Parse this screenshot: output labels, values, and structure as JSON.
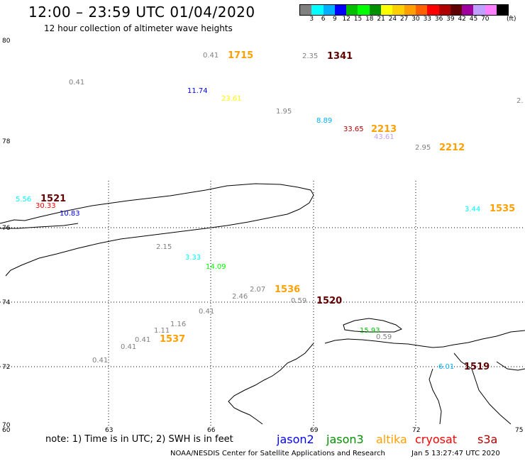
{
  "title": "12:00 – 23:59 UTC 01/04/2020",
  "subtitle": "12 hour collection of altimeter wave heights",
  "scale": {
    "colors": [
      "#808080",
      "#00ffff",
      "#00b0ff",
      "#0000ff",
      "#00c000",
      "#00ff00",
      "#009000",
      "#ffff00",
      "#ffd000",
      "#ffa000",
      "#ff6000",
      "#ff0000",
      "#b00000",
      "#600000",
      "#a000a0",
      "#c0a0ff",
      "#ff80ff",
      "#000000"
    ],
    "labels": [
      "3",
      "6",
      "9",
      "12",
      "15",
      "18",
      "21",
      "24",
      "27",
      "30",
      "33",
      "36",
      "39",
      "42",
      "45",
      "70"
    ],
    "unit": "(ft)"
  },
  "axes": {
    "lat_labels": [
      "80",
      "78",
      "76",
      "74",
      "72",
      "70"
    ],
    "lon_labels": [
      "60",
      "63",
      "66",
      "69",
      "72",
      "75"
    ]
  },
  "observations": [
    {
      "text": "0.41",
      "color": "#808080"
    },
    {
      "text": "1715",
      "color": "#ffa000"
    },
    {
      "text": "2.35",
      "color": "#808080"
    },
    {
      "text": "1341",
      "color": "#600000"
    },
    {
      "text": "0.41",
      "color": "#808080"
    },
    {
      "text": "11.74",
      "color": "#0000ff"
    },
    {
      "text": "23.61",
      "color": "#ffff00"
    },
    {
      "text": "1.95",
      "color": "#808080"
    },
    {
      "text": "2.",
      "color": "#808080"
    },
    {
      "text": "8.89",
      "color": "#00b0ff"
    },
    {
      "text": "33.65",
      "color": "#b00000"
    },
    {
      "text": "2213",
      "color": "#ffa000"
    },
    {
      "text": "43.61",
      "color": "#c0a0ff"
    },
    {
      "text": "2.95",
      "color": "#808080"
    },
    {
      "text": "2212",
      "color": "#ffa000"
    },
    {
      "text": "5.56",
      "color": "#00ffff"
    },
    {
      "text": "1521",
      "color": "#600000"
    },
    {
      "text": "30.33",
      "color": "#ff0000"
    },
    {
      "text": "10.83",
      "color": "#0000ff"
    },
    {
      "text": "3.44",
      "color": "#00ffff"
    },
    {
      "text": "1535",
      "color": "#ffa000"
    },
    {
      "text": "2.15",
      "color": "#808080"
    },
    {
      "text": "3.33",
      "color": "#00ffff"
    },
    {
      "text": "14.09",
      "color": "#00ff00"
    },
    {
      "text": "2.07",
      "color": "#808080"
    },
    {
      "text": "1536",
      "color": "#ffa000"
    },
    {
      "text": "2.46",
      "color": "#808080"
    },
    {
      "text": "0.59",
      "color": "#808080"
    },
    {
      "text": "1520",
      "color": "#600000"
    },
    {
      "text": "0.41",
      "color": "#808080"
    },
    {
      "text": "1.16",
      "color": "#808080"
    },
    {
      "text": "1.11",
      "color": "#808080"
    },
    {
      "text": "0.41",
      "color": "#808080"
    },
    {
      "text": "1537",
      "color": "#ffa000"
    },
    {
      "text": "0.41",
      "color": "#808080"
    },
    {
      "text": "15.93",
      "color": "#00c000"
    },
    {
      "text": "0.59",
      "color": "#808080"
    },
    {
      "text": "0.41",
      "color": "#808080"
    },
    {
      "text": "6.01",
      "color": "#00b0ff"
    },
    {
      "text": "1519",
      "color": "#600000"
    }
  ],
  "footer": {
    "note": "note:  1) Time is in UTC;  2) SWH is in feet",
    "satellites": [
      {
        "name": "jason2",
        "color": "#0000ff"
      },
      {
        "name": "jason3",
        "color": "#009000"
      },
      {
        "name": "altika",
        "color": "#ffa000"
      },
      {
        "name": "cryosat",
        "color": "#ff0000"
      },
      {
        "name": "s3a",
        "color": "#b00000"
      }
    ],
    "credit": "NOAA/NESDIS Center for Satellite Applications and Research",
    "timestamp": "Jan  5 13:27:47 UTC 2020"
  }
}
